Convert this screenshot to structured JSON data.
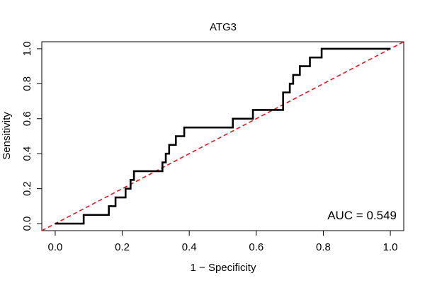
{
  "chart_data": {
    "type": "line",
    "title": "ATG3",
    "xlabel": "1 − Specificity",
    "ylabel": "Sensitivity",
    "xlim": [
      -0.04,
      1.04
    ],
    "ylim": [
      -0.04,
      1.04
    ],
    "x_ticks": [
      0.0,
      0.2,
      0.4,
      0.6,
      0.8,
      1.0
    ],
    "y_ticks": [
      0.0,
      0.2,
      0.4,
      0.6,
      0.8,
      1.0
    ],
    "x_tick_labels": [
      "0.0",
      "0.2",
      "0.4",
      "0.6",
      "0.8",
      "1.0"
    ],
    "y_tick_labels": [
      "0.0",
      "0.2",
      "0.4",
      "0.6",
      "0.8",
      "1.0"
    ],
    "annotation": "AUC = 0.549",
    "series": [
      {
        "name": "ROC curve",
        "color": "#000000",
        "style": "solid",
        "x": [
          0.0,
          0.085,
          0.085,
          0.16,
          0.16,
          0.18,
          0.18,
          0.21,
          0.21,
          0.225,
          0.225,
          0.235,
          0.235,
          0.32,
          0.32,
          0.33,
          0.33,
          0.34,
          0.34,
          0.36,
          0.36,
          0.385,
          0.385,
          0.53,
          0.53,
          0.59,
          0.59,
          0.68,
          0.68,
          0.7,
          0.7,
          0.71,
          0.71,
          0.73,
          0.73,
          0.76,
          0.76,
          0.795,
          0.795,
          1.0
        ],
        "y": [
          0.0,
          0.0,
          0.05,
          0.05,
          0.1,
          0.1,
          0.15,
          0.15,
          0.2,
          0.2,
          0.25,
          0.25,
          0.3,
          0.3,
          0.35,
          0.35,
          0.4,
          0.4,
          0.45,
          0.45,
          0.5,
          0.5,
          0.55,
          0.55,
          0.6,
          0.6,
          0.65,
          0.65,
          0.75,
          0.75,
          0.8,
          0.8,
          0.85,
          0.85,
          0.9,
          0.9,
          0.95,
          0.95,
          1.0,
          1.0
        ]
      },
      {
        "name": "Reference diagonal",
        "color": "#e8141c",
        "style": "dashed",
        "x": [
          -0.04,
          1.04
        ],
        "y": [
          -0.04,
          1.04
        ]
      }
    ]
  }
}
